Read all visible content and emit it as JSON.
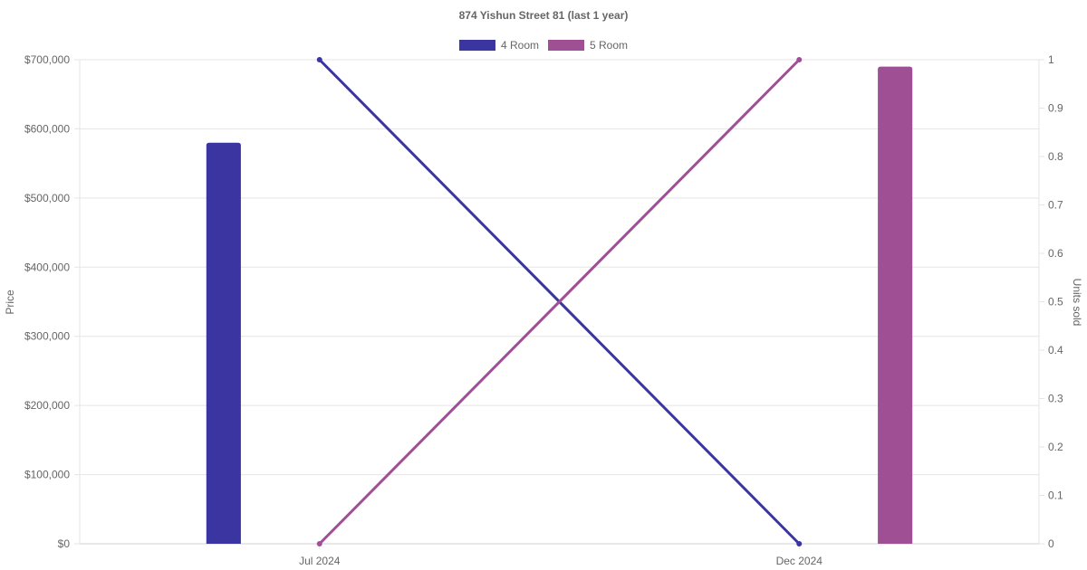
{
  "chart_data": {
    "type": "bar",
    "title": "874 Yishun Street 81 (last 1 year)",
    "categories": [
      "Jul 2024",
      "Dec 2024"
    ],
    "ylabel": "Price",
    "y2label": "Units sold",
    "ylim": [
      0,
      700000
    ],
    "y2lim": [
      0,
      1
    ],
    "y_ticks": [
      "$0",
      "$100,000",
      "$200,000",
      "$300,000",
      "$400,000",
      "$500,000",
      "$600,000",
      "$700,000"
    ],
    "y2_ticks": [
      "0",
      "0.1",
      "0.2",
      "0.3",
      "0.4",
      "0.5",
      "0.6",
      "0.7",
      "0.8",
      "0.9",
      "1"
    ],
    "grid": true,
    "legend_position": "top-center",
    "series": [
      {
        "name": "4 Room",
        "color": "#3a35a0",
        "price": [
          580000,
          null
        ],
        "units_sold": [
          1,
          0
        ]
      },
      {
        "name": "5 Room",
        "color": "#9f5095",
        "price": [
          null,
          690000
        ],
        "units_sold": [
          0,
          1
        ]
      }
    ]
  }
}
